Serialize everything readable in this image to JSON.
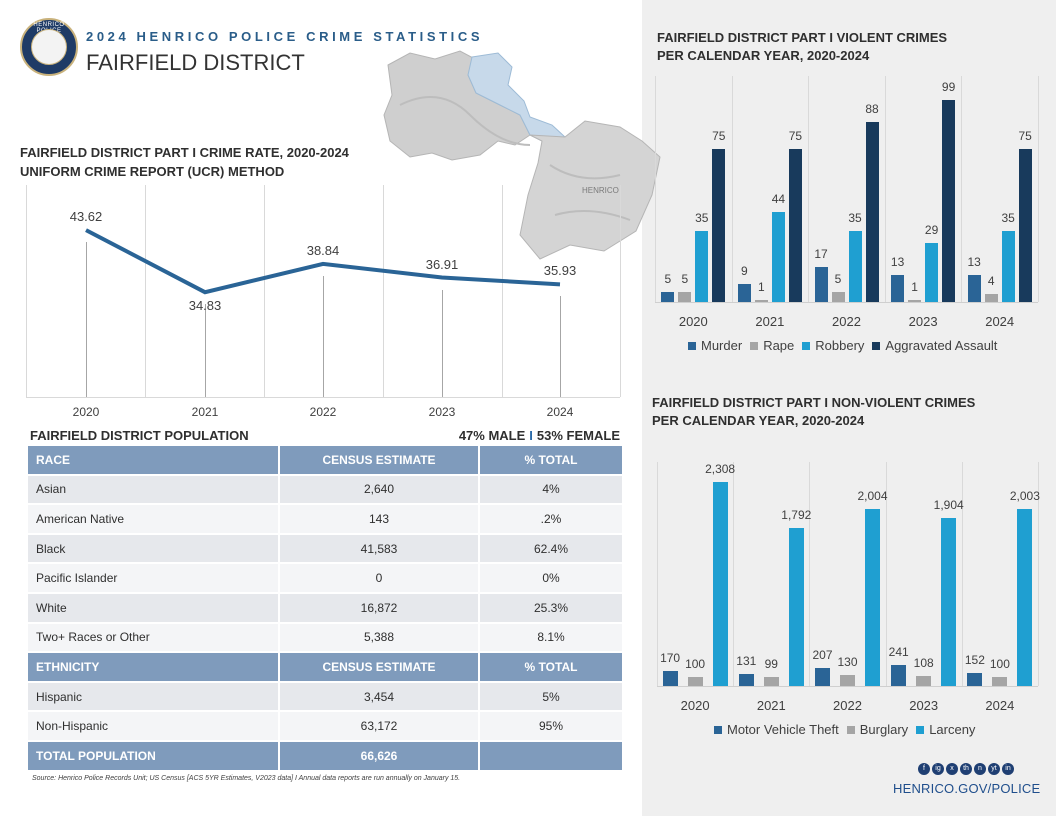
{
  "header": {
    "kicker": "2024 HENRICO POLICE CRIME STATISTICS",
    "district": "FAIRFIELD DISTRICT",
    "logo_text": "HENRICO POLICE",
    "map_label": "HENRICO"
  },
  "rate_chart": {
    "title_line1": "FAIRFIELD DISTRICT PART I CRIME RATE, 2020-2024",
    "title_line2": "UNIFORM CRIME REPORT (UCR) METHOD",
    "chart_data": {
      "type": "line",
      "title": "FAIRFIELD DISTRICT PART I CRIME RATE, 2020-2024",
      "x": [
        "2020",
        "2021",
        "2022",
        "2023",
        "2024"
      ],
      "y": [
        43.62,
        34.83,
        38.84,
        36.91,
        35.93
      ],
      "labels": [
        "43.62",
        "34.83",
        "38.84",
        "36.91",
        "35.93"
      ],
      "ylim": [
        20,
        50
      ],
      "color": "#2a6496"
    }
  },
  "population": {
    "title": "FAIRFIELD DISTRICT POPULATION",
    "male": "47% MALE",
    "sep": "I",
    "female": "53% FEMALE",
    "race_header": [
      "RACE",
      "CENSUS ESTIMATE",
      "% TOTAL"
    ],
    "race_rows": [
      [
        "Asian",
        "2,640",
        "4%"
      ],
      [
        "American Native",
        "143",
        ".2%"
      ],
      [
        "Black",
        "41,583",
        "62.4%"
      ],
      [
        "Pacific Islander",
        "0",
        "0%"
      ],
      [
        "White",
        "16,872",
        "25.3%"
      ],
      [
        "Two+ Races or Other",
        "5,388",
        "8.1%"
      ]
    ],
    "eth_header": [
      "ETHNICITY",
      "CENSUS ESTIMATE",
      "% TOTAL"
    ],
    "eth_rows": [
      [
        "Hispanic",
        "3,454",
        "5%"
      ],
      [
        "Non-Hispanic",
        "63,172",
        "95%"
      ]
    ],
    "total": [
      "TOTAL POPULATION",
      "66,626",
      ""
    ]
  },
  "source": "Source: Henrico Police Records Unit; US Census [ACS 5YR Estimates, V2023 data] I Annual data reports are run annually on January 15.",
  "violent": {
    "title_line1": "FAIRFIELD DISTRICT PART I VIOLENT CRIMES",
    "title_line2": "PER CALENDAR YEAR, 2020-2024",
    "chart_data": {
      "type": "bar",
      "categories": [
        "2020",
        "2021",
        "2022",
        "2023",
        "2024"
      ],
      "series": [
        {
          "name": "Murder",
          "color": "#2a6496",
          "values": [
            5,
            9,
            17,
            13,
            13
          ],
          "labels": [
            "5",
            "9",
            "17",
            "13",
            "13"
          ]
        },
        {
          "name": "Rape",
          "color": "#a5a5a5",
          "values": [
            5,
            1,
            5,
            1,
            4
          ],
          "labels": [
            "5",
            "1",
            "5",
            "1",
            "4"
          ]
        },
        {
          "name": "Robbery",
          "color": "#1f9fd1",
          "values": [
            35,
            44,
            35,
            29,
            35
          ],
          "labels": [
            "35",
            "44",
            "35",
            "29",
            "35"
          ]
        },
        {
          "name": "Aggravated Assault",
          "color": "#183a5c",
          "values": [
            75,
            75,
            88,
            99,
            75
          ],
          "labels": [
            "75",
            "75",
            "88",
            "99",
            "75"
          ]
        }
      ],
      "ylim": [
        0,
        100
      ]
    }
  },
  "nonviolent": {
    "title_line1": "FAIRFIELD DISTRICT PART I NON-VIOLENT CRIMES",
    "title_line2": "PER CALENDAR YEAR, 2020-2024",
    "chart_data": {
      "type": "bar",
      "categories": [
        "2020",
        "2021",
        "2022",
        "2023",
        "2024"
      ],
      "series": [
        {
          "name": "Motor Vehicle Theft",
          "color": "#2a6496",
          "values": [
            170,
            131,
            207,
            241,
            152
          ],
          "labels": [
            "170",
            "131",
            "207",
            "241",
            "152"
          ]
        },
        {
          "name": "Burglary",
          "color": "#a5a5a5",
          "values": [
            100,
            99,
            130,
            108,
            100
          ],
          "labels": [
            "100",
            "99",
            "130",
            "108",
            "100"
          ]
        },
        {
          "name": "Larceny",
          "color": "#1f9fd1",
          "values": [
            2308,
            1792,
            2004,
            1904,
            2003
          ],
          "labels": [
            "2,308",
            "1,792",
            "2,004",
            "1,904",
            "2,003"
          ]
        }
      ],
      "ylim": [
        0,
        2308
      ]
    }
  },
  "footer": {
    "social": [
      "f",
      "ig",
      "x",
      "th",
      "n",
      "yt",
      "in"
    ],
    "website": "HENRICO.GOV/POLICE"
  }
}
